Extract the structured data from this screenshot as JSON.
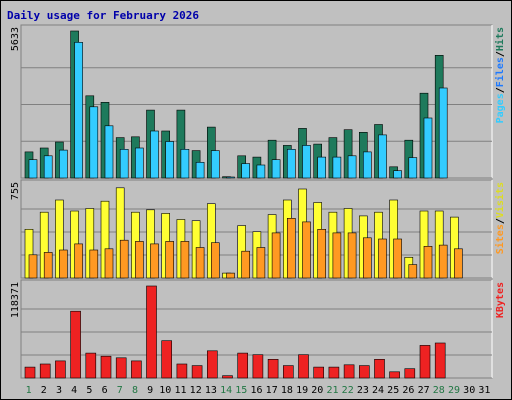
{
  "chart_data": {
    "type": "bar",
    "title": "Daily usage for February 2026",
    "days": [
      "1",
      "2",
      "3",
      "4",
      "5",
      "6",
      "7",
      "8",
      "9",
      "10",
      "11",
      "12",
      "13",
      "14",
      "15",
      "16",
      "17",
      "18",
      "19",
      "20",
      "21",
      "22",
      "23",
      "24",
      "25",
      "26",
      "27",
      "28",
      "29",
      "30",
      "31"
    ],
    "weekend_days": [
      "1",
      "7",
      "8",
      "14",
      "15",
      "21",
      "22",
      "28",
      "29"
    ],
    "colors": {
      "hits": "#1e7a5c",
      "files": "#33ccff",
      "visits": "#ffff33",
      "sites": "#ff9922",
      "kbytes": "#ee2222",
      "weekday_label": "#000000",
      "weekend_label": "#227744"
    },
    "panels": [
      {
        "id": "top",
        "ymax_label": "5633",
        "ymax": 5633,
        "series": [
          {
            "name": "Hits",
            "color": "#1e7a5c",
            "values": [
              1000,
              1150,
              1380,
              5633,
              3150,
              2900,
              1550,
              1580,
              2600,
              1800,
              2600,
              1050,
              1950,
              50,
              850,
              800,
              1450,
              1250,
              1900,
              1300,
              1550,
              1850,
              1750,
              2050,
              430,
              1450,
              3250,
              4700,
              0,
              0,
              0
            ]
          },
          {
            "name": "Files",
            "color": "#33ccff",
            "values": [
              700,
              850,
              1070,
              5200,
              2730,
              2000,
              1100,
              1150,
              1800,
              1400,
              1100,
              600,
              1050,
              30,
              550,
              500,
              700,
              1100,
              1250,
              800,
              800,
              850,
              1000,
              1650,
              280,
              780,
              2300,
              3450,
              0,
              0,
              0
            ]
          }
        ],
        "legend": [
          {
            "text": "Pages",
            "color": "#33ccff"
          },
          {
            "text": "/",
            "color": "#000000"
          },
          {
            "text": "Files",
            "color": "#1e7aff"
          },
          {
            "text": "/",
            "color": "#000000"
          },
          {
            "text": "Hits",
            "color": "#1e7a5c"
          }
        ]
      },
      {
        "id": "mid",
        "ymax_label": "755",
        "ymax": 755,
        "series": [
          {
            "name": "Visits",
            "color": "#ffff33",
            "values": [
              400,
              540,
              640,
              550,
              570,
              630,
              740,
              540,
              560,
              530,
              480,
              470,
              610,
              40,
              430,
              380,
              520,
              640,
              730,
              620,
              540,
              570,
              510,
              540,
              640,
              170,
              550,
              550,
              500,
              0,
              0
            ]
          },
          {
            "name": "Sites",
            "color": "#ff9922",
            "values": [
              190,
              210,
              230,
              280,
              230,
              240,
              310,
              300,
              280,
              300,
              300,
              250,
              290,
              40,
              220,
              250,
              370,
              490,
              460,
              400,
              370,
              370,
              330,
              320,
              320,
              110,
              260,
              270,
              240,
              0,
              0
            ]
          }
        ],
        "legend": [
          {
            "text": "Sites",
            "color": "#ff9922"
          },
          {
            "text": "/",
            "color": "#000000"
          },
          {
            "text": "Visits",
            "color": "#dddd22"
          }
        ]
      },
      {
        "id": "bottom",
        "ymax_label": "118371",
        "ymax": 118371,
        "series": [
          {
            "name": "KBytes",
            "color": "#ee2222",
            "values": [
              14000,
              18000,
              22000,
              86000,
              32000,
              28000,
              26000,
              22000,
              118371,
              48000,
              18000,
              16000,
              35000,
              3000,
              32000,
              30000,
              24000,
              16000,
              30000,
              14000,
              14000,
              17000,
              16000,
              24000,
              8000,
              12000,
              42000,
              45000,
              0,
              0,
              0
            ]
          }
        ],
        "legend": [
          {
            "text": "KBytes",
            "color": "#ee2222"
          }
        ]
      }
    ]
  }
}
